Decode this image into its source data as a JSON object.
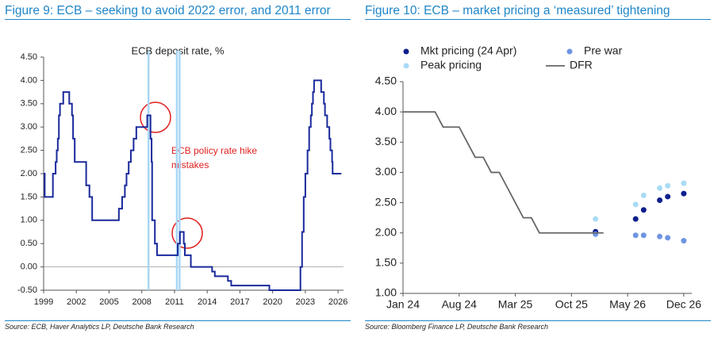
{
  "chart_data": [
    {
      "type": "line",
      "step": true,
      "title": "Figure 9: ECB – seeking to avoid 2022 error, and 2011 error",
      "subtitle": "ECB deposit rate, %",
      "annotation": [
        "ECB policy rate hike",
        "mistakes"
      ],
      "source": "Source: ECB, Haver Analytics LP, Deutsche Bank Research",
      "color": "#1a2a9c",
      "highlight_color": "#a9d6f5",
      "highlight_x": [
        2008.6,
        2011.2,
        2011.45
      ],
      "x": [
        1999.0,
        1999.1,
        1999.85,
        2000.1,
        2000.2,
        2000.3,
        2000.4,
        2000.5,
        2000.8,
        2001.35,
        2001.6,
        2001.7,
        2001.85,
        2002.9,
        2003.2,
        2003.45,
        2005.9,
        2006.2,
        2006.45,
        2006.6,
        2006.8,
        2007.0,
        2007.25,
        2007.5,
        2008.5,
        2008.8,
        2008.9,
        2008.95,
        2009.2,
        2009.4,
        2011.3,
        2011.5,
        2011.85,
        2011.95,
        2012.5,
        2014.45,
        2014.7,
        2015.9,
        2016.2,
        2019.7,
        2022.55,
        2022.7,
        2022.85,
        2023.0,
        2023.2,
        2023.35,
        2023.5,
        2023.6,
        2023.7,
        2023.8,
        2024.45,
        2024.7,
        2024.8,
        2025.0,
        2025.2,
        2025.3,
        2025.45,
        2025.5,
        2026.3
      ],
      "values": [
        2.0,
        1.5,
        2.0,
        2.25,
        2.5,
        2.75,
        3.25,
        3.5,
        3.75,
        3.5,
        3.25,
        2.75,
        2.25,
        1.75,
        1.5,
        1.0,
        1.25,
        1.5,
        1.75,
        2.0,
        2.25,
        2.5,
        2.75,
        3.0,
        3.25,
        2.75,
        2.25,
        1.0,
        0.5,
        0.25,
        0.5,
        0.75,
        0.5,
        0.25,
        0.0,
        -0.1,
        -0.2,
        -0.3,
        -0.4,
        -0.5,
        0.0,
        0.75,
        1.5,
        2.0,
        2.5,
        3.0,
        3.25,
        3.5,
        3.75,
        4.0,
        3.75,
        3.5,
        3.25,
        3.0,
        2.75,
        2.5,
        2.25,
        2.0,
        2.0
      ],
      "xlim": [
        1999,
        2026.5
      ],
      "xticks": [
        1999,
        2002,
        2005,
        2008,
        2011,
        2014,
        2017,
        2020,
        2023,
        2026
      ],
      "ylim": [
        -0.5,
        4.5
      ],
      "yticks": [
        {
          "value": -0.5,
          "label": "-0.50"
        },
        {
          "value": 0,
          "label": "0.00"
        },
        {
          "value": 0.5,
          "label": "0.50"
        },
        {
          "value": 1,
          "label": "1.00"
        },
        {
          "value": 1.5,
          "label": "1.50"
        },
        {
          "value": 2,
          "label": "2.00"
        },
        {
          "value": 2.5,
          "label": "2.50"
        },
        {
          "value": 3,
          "label": "3.00"
        },
        {
          "value": 3.5,
          "label": "3.50"
        },
        {
          "value": 4,
          "label": "4.00"
        },
        {
          "value": 4.5,
          "label": "4.50"
        }
      ]
    },
    {
      "type": "line",
      "title": "Figure 10: ECB – market pricing a ‘measured’ tightening",
      "source": "Source: Bloomberg Finance LP, Deutsche Bank Research",
      "xlim": [
        "2024-01",
        "2027-01"
      ],
      "xticks": [
        {
          "value": "2024-01",
          "label": "Jan 24"
        },
        {
          "value": "2024-08",
          "label": "Aug 24"
        },
        {
          "value": "2025-03",
          "label": "Mar 25"
        },
        {
          "value": "2025-10",
          "label": "Oct 25"
        },
        {
          "value": "2026-05",
          "label": "May 26"
        },
        {
          "value": "2026-12",
          "label": "Dec 26"
        }
      ],
      "ylim": [
        1.0,
        4.5
      ],
      "yticks": [
        {
          "value": 1,
          "label": "1.00"
        },
        {
          "value": 1.5,
          "label": "1.50"
        },
        {
          "value": 2,
          "label": "2.00"
        },
        {
          "value": 2.5,
          "label": "2.50"
        },
        {
          "value": 3,
          "label": "3.00"
        },
        {
          "value": 3.5,
          "label": "3.50"
        },
        {
          "value": 4,
          "label": "4.00"
        },
        {
          "value": 4.5,
          "label": "4.50"
        }
      ],
      "series": [
        {
          "name": "Mkt pricing (24 Apr)",
          "style": "dots",
          "color": "#0d1f8c",
          "x": [
            "2026-01",
            "2026-06",
            "2026-07",
            "2026-09",
            "2026-10",
            "2026-12"
          ],
          "values": [
            2.02,
            2.23,
            2.38,
            2.54,
            2.6,
            2.65
          ]
        },
        {
          "name": "Pre war",
          "style": "dots",
          "color": "#6f95e3",
          "x": [
            "2026-01",
            "2026-06",
            "2026-07",
            "2026-09",
            "2026-10",
            "2026-12"
          ],
          "values": [
            1.98,
            1.96,
            1.96,
            1.94,
            1.92,
            1.87
          ]
        },
        {
          "name": "Peak pricing",
          "style": "dots",
          "color": "#a8dcf5",
          "x": [
            "2026-01",
            "2026-06",
            "2026-07",
            "2026-09",
            "2026-10",
            "2026-12"
          ],
          "values": [
            2.23,
            2.47,
            2.62,
            2.74,
            2.78,
            2.82
          ]
        },
        {
          "name": "DFR",
          "style": "line",
          "color": "#666666",
          "x": [
            "2024-01",
            "2024-02",
            "2024-03",
            "2024-04",
            "2024-05",
            "2024-06",
            "2024-07",
            "2024-08",
            "2024-09",
            "2024-10",
            "2024-11",
            "2024-12",
            "2025-01",
            "2025-02",
            "2025-03",
            "2025-04",
            "2025-05",
            "2025-06",
            "2025-07",
            "2025-08",
            "2025-09",
            "2025-10",
            "2025-11",
            "2025-12",
            "2026-01",
            "2026-02"
          ],
          "values": [
            4.0,
            4.0,
            4.0,
            4.0,
            4.0,
            3.75,
            3.75,
            3.75,
            3.5,
            3.25,
            3.25,
            3.0,
            3.0,
            2.75,
            2.5,
            2.25,
            2.25,
            2.0,
            2.0,
            2.0,
            2.0,
            2.0,
            2.0,
            2.0,
            2.0,
            2.0
          ]
        }
      ]
    }
  ]
}
